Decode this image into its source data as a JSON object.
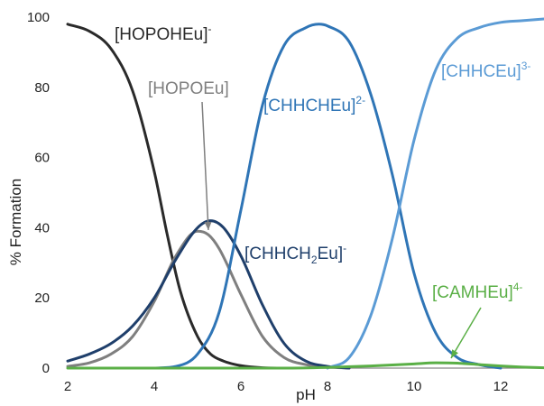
{
  "chart_data": {
    "type": "line",
    "xlabel": "pH",
    "ylabel": "% Formation",
    "xlim": [
      2,
      13
    ],
    "ylim": [
      0,
      100
    ],
    "xticks": [
      "2",
      "4",
      "6",
      "8",
      "10",
      "12"
    ],
    "yticks": [
      "0",
      "20",
      "40",
      "60",
      "80",
      "100"
    ],
    "grid": false,
    "legend": "none",
    "series": [
      {
        "name": "[HOPOHEu]-",
        "label_main": "[HOPOHEu]",
        "label_sup": "-",
        "color": "#2a2a2a",
        "x": [
          2,
          2.5,
          3,
          3.5,
          4,
          4.3,
          4.6,
          5,
          5.3,
          5.6,
          6,
          6.5,
          7
        ],
        "y": [
          98,
          96,
          91,
          79,
          56,
          38,
          22,
          9,
          4,
          2,
          0.7,
          0.1,
          0
        ]
      },
      {
        "name": "[HOPOEu]",
        "label_main": "[HOPOEu]",
        "label_sup": "",
        "color": "#7f7f7f",
        "x": [
          2,
          2.5,
          3,
          3.5,
          4,
          4.5,
          5,
          5.25,
          5.5,
          6,
          6.5,
          7,
          7.5,
          8,
          8.5
        ],
        "y": [
          0.5,
          1.5,
          4,
          9,
          19,
          32,
          39,
          38,
          34,
          21,
          9,
          3,
          1,
          0.3,
          0
        ]
      },
      {
        "name": "[CHHCH2Eu]-",
        "label_main": "[CHHCH",
        "label_sub": "2",
        "label_tail": "Eu]",
        "label_sup": "-",
        "color": "#1f3f6b",
        "x": [
          2,
          2.5,
          3,
          3.5,
          4,
          4.5,
          5,
          5.3,
          5.6,
          6,
          6.5,
          7,
          7.5,
          8,
          8.5
        ],
        "y": [
          2,
          4,
          7,
          12,
          20,
          31,
          40,
          42,
          40,
          32,
          18,
          7,
          2,
          0.5,
          0
        ]
      },
      {
        "name": "[CHHCHEu]2-",
        "label_main": "[CHHCHEu]",
        "label_sup": "2-",
        "color": "#2f75b6",
        "x": [
          4,
          4.5,
          5,
          5.5,
          6,
          6.5,
          7,
          7.5,
          7.8,
          8,
          8.5,
          9,
          9.5,
          10,
          10.5,
          11,
          11.5,
          12
        ],
        "y": [
          0,
          0.5,
          4,
          16,
          45,
          75,
          92,
          97,
          98,
          97.5,
          93,
          78,
          55,
          27,
          10,
          3,
          1,
          0
        ]
      },
      {
        "name": "[CHHCEu]3-",
        "label_main": "[CHHCEu]",
        "label_sup": "3-",
        "color": "#5b9bd5",
        "x": [
          8,
          8.5,
          9,
          9.5,
          10,
          10.5,
          11,
          11.5,
          12,
          12.5,
          13
        ],
        "y": [
          0,
          3,
          15,
          37,
          65,
          85,
          94,
          97,
          98.5,
          99,
          99.5
        ]
      },
      {
        "name": "[CAMHEu]4-",
        "label_main": "[CAMHEu]",
        "label_sup": "4-",
        "color": "#5aaf46",
        "x": [
          2,
          7,
          8,
          9,
          10,
          10.5,
          11,
          11.5,
          12,
          12.5,
          13
        ],
        "y": [
          0,
          0,
          0.2,
          0.6,
          1.2,
          1.5,
          1.4,
          1.0,
          0.6,
          0.3,
          0.1
        ]
      }
    ]
  }
}
